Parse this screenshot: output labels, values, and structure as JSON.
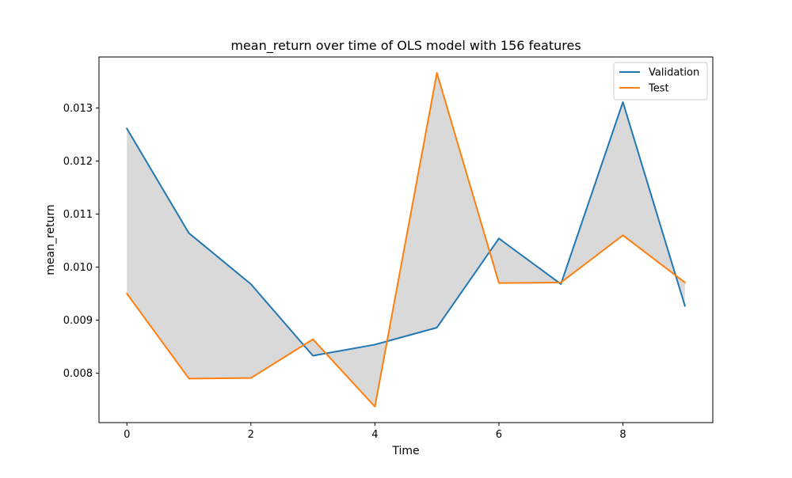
{
  "chart_data": {
    "type": "line",
    "title": "mean_return over time of OLS model with 156 features",
    "xlabel": "Time",
    "ylabel": "mean_return",
    "x": [
      0,
      1,
      2,
      3,
      4,
      5,
      6,
      7,
      8,
      9
    ],
    "series": [
      {
        "name": "Validation",
        "color": "#1f77b4",
        "values": [
          0.01261,
          0.01064,
          0.00968,
          0.00833,
          0.00854,
          0.00886,
          0.01054,
          0.00968,
          0.01311,
          0.00927
        ]
      },
      {
        "name": "Test",
        "color": "#ff7f0e",
        "values": [
          0.0095,
          0.0079,
          0.00791,
          0.00864,
          0.00737,
          0.01366,
          0.0097,
          0.00971,
          0.0106,
          0.00971
        ]
      }
    ],
    "fill_between": {
      "color": "#d9d9d9"
    },
    "xticks": [
      "0",
      "2",
      "4",
      "6",
      "8"
    ],
    "yticks": [
      "0.008",
      "0.009",
      "0.010",
      "0.011",
      "0.012",
      "0.013"
    ],
    "xlim": [
      -0.45,
      9.45
    ],
    "ylim": [
      0.00707,
      0.01396
    ],
    "grid": false,
    "legend_position": "top-right"
  }
}
